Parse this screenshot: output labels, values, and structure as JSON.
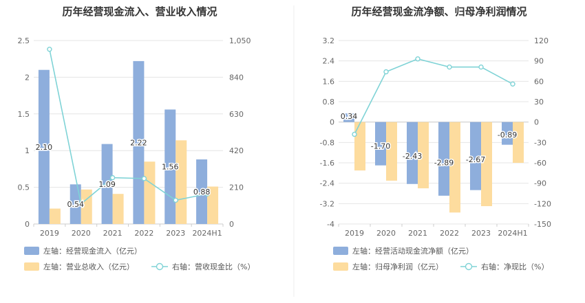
{
  "colors": {
    "blue": "#8eaedc",
    "orange": "#fddc9e",
    "line": "#7fd3d6",
    "grid": "#e4e4e4",
    "divider": "#eeeeee"
  },
  "chart_data": [
    {
      "type": "bar",
      "title": "历年经营现金流入、营业收入情况",
      "categories": [
        "2019",
        "2020",
        "2021",
        "2022",
        "2023",
        "2024H1"
      ],
      "left_axis": {
        "min": 0,
        "max": 2.5,
        "ticks": [
          "0",
          "0.5",
          "1",
          "1.5",
          "2",
          "2.5"
        ]
      },
      "right_axis": {
        "min": 0,
        "max": 1050,
        "ticks": [
          "0",
          "210",
          "420",
          "630",
          "840",
          "1,050"
        ]
      },
      "series": [
        {
          "name": "左轴：经营现金流入（亿元）",
          "kind": "bar",
          "axis": "left",
          "values": [
            2.1,
            0.54,
            1.09,
            2.22,
            1.56,
            0.88
          ],
          "labels": [
            "2.10",
            "0.54",
            "1.09",
            "2.22",
            "1.56",
            "0.88"
          ]
        },
        {
          "name": "左轴：营业总收入（亿元）",
          "kind": "bar",
          "axis": "left",
          "values": [
            0.21,
            0.47,
            0.41,
            0.85,
            1.14,
            0.51
          ]
        },
        {
          "name": "右轴：营收现金比（%）",
          "kind": "line",
          "axis": "right",
          "values": [
            1000,
            115,
            265,
            260,
            136,
            172
          ]
        }
      ],
      "grid": true,
      "legend": "bottom-left"
    },
    {
      "type": "bar",
      "title": "历年经营现金流净额、归母净利润情况",
      "categories": [
        "2019",
        "2020",
        "2021",
        "2022",
        "2023",
        "2024H1"
      ],
      "left_axis": {
        "min": -4,
        "max": 3.2,
        "ticks": [
          "-4",
          "-3.2",
          "-2.4",
          "-1.6",
          "-0.8",
          "0",
          "0.8",
          "1.6",
          "2.4",
          "3.2"
        ]
      },
      "right_axis": {
        "min": -150,
        "max": 120,
        "ticks": [
          "-150",
          "-120",
          "-90",
          "-60",
          "-30",
          "0",
          "30",
          "60",
          "90",
          "120"
        ]
      },
      "series": [
        {
          "name": "左轴：经营活动现金流净额（亿元）",
          "kind": "bar",
          "axis": "left",
          "values": [
            0.34,
            -1.7,
            -2.43,
            -2.89,
            -2.67,
            -0.89
          ],
          "labels": [
            "0.34",
            "-1.70",
            "-2.43",
            "-2.89",
            "-2.67",
            "-0.89"
          ]
        },
        {
          "name": "左轴：归母净利润（亿元）",
          "kind": "bar",
          "axis": "left",
          "values": [
            -1.9,
            -2.3,
            -2.6,
            -3.55,
            -3.3,
            -1.6
          ]
        },
        {
          "name": "右轴：净现比（%）",
          "kind": "line",
          "axis": "right",
          "values": [
            -18,
            74,
            93,
            81,
            81,
            56
          ]
        }
      ],
      "grid": true,
      "legend": "bottom-left"
    }
  ]
}
